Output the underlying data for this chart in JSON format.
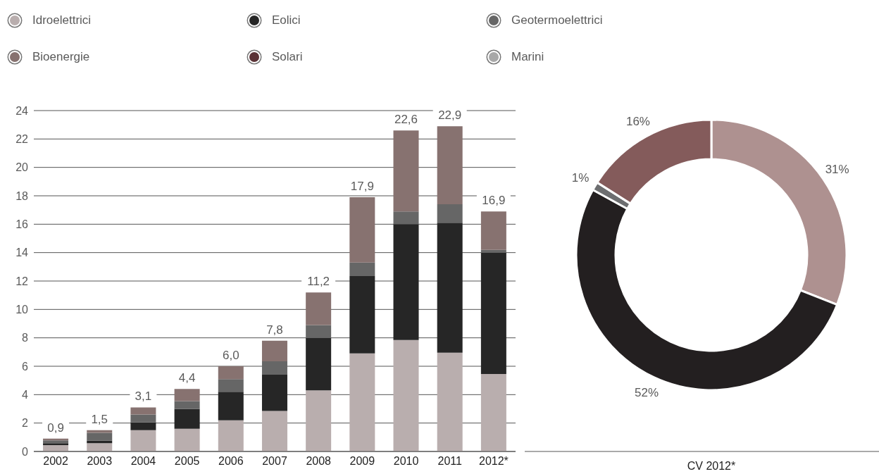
{
  "chart_data": [
    {
      "type": "bar",
      "stacked": true,
      "categories": [
        "2002",
        "2003",
        "2004",
        "2005",
        "2006",
        "2007",
        "2008",
        "2009",
        "2010",
        "2011",
        "2012*"
      ],
      "series": [
        {
          "name": "Idroelettrici",
          "color": "#b9aeae",
          "values": [
            0.45,
            0.58,
            1.5,
            1.6,
            2.2,
            2.85,
            4.3,
            6.9,
            7.85,
            6.95,
            5.45
          ]
        },
        {
          "name": "Eolici",
          "color": "#262626",
          "values": [
            0.13,
            0.19,
            0.55,
            1.4,
            2.0,
            2.55,
            3.7,
            5.45,
            8.15,
            9.15,
            8.55
          ]
        },
        {
          "name": "Geotermoelettrici",
          "color": "#666666",
          "values": [
            0.2,
            0.55,
            0.55,
            0.55,
            0.9,
            0.95,
            0.9,
            0.95,
            0.9,
            1.3,
            0.2
          ]
        },
        {
          "name": "Bioenergie",
          "color": "#877270",
          "values": [
            0.12,
            0.18,
            0.5,
            0.85,
            0.9,
            1.45,
            2.3,
            4.6,
            5.7,
            5.5,
            2.7
          ]
        },
        {
          "name": "Solari",
          "color": "#5a3236",
          "values": [
            null,
            null,
            null,
            null,
            null,
            null,
            null,
            null,
            null,
            null,
            null
          ]
        },
        {
          "name": "Marini",
          "color": "#a8a8a8",
          "values": [
            null,
            null,
            null,
            null,
            null,
            null,
            null,
            null,
            null,
            null,
            null
          ]
        }
      ],
      "totals": [
        "0,9",
        "1,5",
        "3,1",
        "4,4",
        "6,0",
        "7,8",
        "11,2",
        "17,9",
        "22,6",
        "22,9",
        "16,9"
      ],
      "ylim": [
        0,
        24
      ],
      "yticks": [
        0,
        2,
        4,
        6,
        8,
        10,
        12,
        14,
        16,
        18,
        20,
        22,
        24
      ],
      "grid": "y",
      "legend": "top"
    },
    {
      "type": "donut",
      "categories": [
        null,
        null,
        null,
        null
      ],
      "values": [
        31,
        52,
        1,
        16
      ],
      "colors": [
        "#ae9190",
        "#231f20",
        "#6d6e70",
        "#845b5b"
      ],
      "value_labels": [
        "31%",
        "52%",
        "1%",
        "16%"
      ],
      "xlabel": "CV 2012*"
    }
  ]
}
